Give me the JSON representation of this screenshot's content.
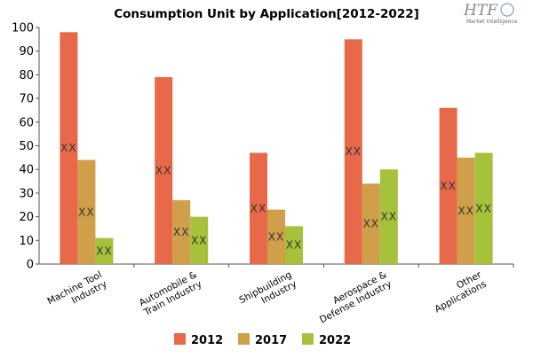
{
  "logo": {
    "brand": "HTF",
    "tagline": "Market Intelligence"
  },
  "chart_data": {
    "type": "bar",
    "title": "Consumption Unit by  Application[2012-2022]",
    "xlabel": "",
    "ylabel": "",
    "ylim": [
      0,
      100
    ],
    "yticks": [
      0,
      10,
      20,
      30,
      40,
      50,
      60,
      70,
      80,
      90,
      100
    ],
    "grid": false,
    "legend_position": "bottom",
    "categories": [
      [
        "Machine Tool",
        "Industry"
      ],
      [
        "Automobile &",
        "Train Industry"
      ],
      [
        "Shipbuilding",
        "Industry"
      ],
      [
        "Aerospace &",
        "Defense Industry"
      ],
      [
        "Other",
        "Applications"
      ]
    ],
    "series": [
      {
        "name": "2012",
        "color": "#e8684a",
        "values": [
          98,
          79,
          47,
          95,
          66
        ],
        "labels": [
          "XX",
          "XX",
          "XX",
          "XX",
          "XX"
        ]
      },
      {
        "name": "2017",
        "color": "#cf9f4a",
        "values": [
          44,
          27,
          23,
          34,
          45
        ],
        "labels": [
          "XX",
          "XX",
          "XX",
          "XX",
          "XX"
        ]
      },
      {
        "name": "2022",
        "color": "#a5c23a",
        "values": [
          11,
          20,
          16,
          40,
          47
        ],
        "labels": [
          "XX",
          "XX",
          "XX",
          "XX",
          "XX"
        ]
      }
    ]
  }
}
